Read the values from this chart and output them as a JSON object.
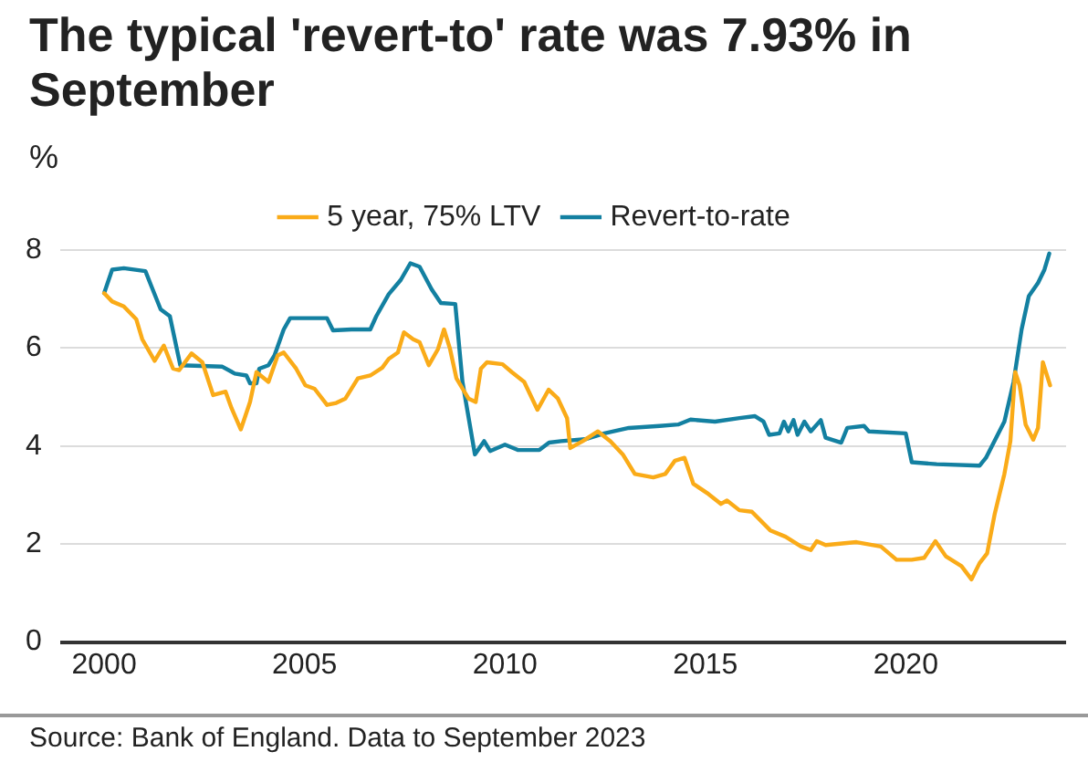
{
  "chart_data": {
    "type": "line",
    "title": "The typical 'revert-to' rate was 7.93% in September",
    "ylabel": "%",
    "annotations": [
      "Source: Bank of England. Data to September 2023"
    ],
    "xlim": [
      1998.9,
      2024
    ],
    "xticks": [
      2000,
      2005,
      2010,
      2015,
      2020
    ],
    "ylim": [
      0,
      8
    ],
    "yticks": [
      0,
      2,
      4,
      6,
      8
    ],
    "grid": "y",
    "legend": "top",
    "series": [
      {
        "name": "5 year, 75% LTV",
        "color": "#faab18",
        "x": [
          2000.0,
          2000.2,
          2000.49,
          2000.8,
          2000.95,
          2001.26,
          2001.49,
          2001.72,
          2001.87,
          2002.18,
          2002.45,
          2002.72,
          2003.03,
          2003.18,
          2003.41,
          2003.64,
          2003.8,
          2004.1,
          2004.33,
          2004.48,
          2004.79,
          2005.02,
          2005.25,
          2005.56,
          2005.79,
          2006.02,
          2006.33,
          2006.64,
          2006.94,
          2007.1,
          2007.33,
          2007.48,
          2007.71,
          2007.87,
          2008.1,
          2008.33,
          2008.48,
          2008.63,
          2008.79,
          2009.09,
          2009.27,
          2009.4,
          2009.55,
          2009.94,
          2010.17,
          2010.48,
          2010.81,
          2011.09,
          2011.32,
          2011.55,
          2011.63,
          2011.94,
          2012.32,
          2012.63,
          2012.94,
          2013.24,
          2013.7,
          2014.0,
          2014.24,
          2014.48,
          2014.7,
          2015.08,
          2015.39,
          2015.54,
          2015.85,
          2016.16,
          2016.62,
          2017.0,
          2017.39,
          2017.63,
          2017.78,
          2018.0,
          2018.77,
          2019.38,
          2019.77,
          2020.15,
          2020.46,
          2020.74,
          2021.0,
          2021.39,
          2021.64,
          2021.84,
          2022.03,
          2022.22,
          2022.46,
          2022.61,
          2022.73,
          2022.84,
          2022.99,
          2023.18,
          2023.3,
          2023.42,
          2023.6
        ],
        "values": [
          7.12,
          6.95,
          6.85,
          6.59,
          6.18,
          5.74,
          6.05,
          5.58,
          5.55,
          5.89,
          5.71,
          5.04,
          5.11,
          4.77,
          4.34,
          4.9,
          5.51,
          5.31,
          5.85,
          5.91,
          5.58,
          5.24,
          5.17,
          4.84,
          4.88,
          4.97,
          5.38,
          5.44,
          5.6,
          5.78,
          5.91,
          6.32,
          6.18,
          6.12,
          5.65,
          5.98,
          6.38,
          5.98,
          5.38,
          4.97,
          4.9,
          5.58,
          5.71,
          5.67,
          5.51,
          5.31,
          4.74,
          5.15,
          4.97,
          4.57,
          3.96,
          4.1,
          4.3,
          4.1,
          3.83,
          3.43,
          3.36,
          3.43,
          3.7,
          3.76,
          3.23,
          3.02,
          2.82,
          2.89,
          2.69,
          2.66,
          2.28,
          2.15,
          1.95,
          1.88,
          2.06,
          1.98,
          2.04,
          1.95,
          1.68,
          1.68,
          1.72,
          2.06,
          1.75,
          1.55,
          1.28,
          1.61,
          1.81,
          2.62,
          3.43,
          4.1,
          5.51,
          5.24,
          4.44,
          4.13,
          4.37,
          5.71,
          5.24
        ]
      },
      {
        "name": "Revert-to-rate",
        "color": "#1380a1",
        "x": [
          2000.0,
          2000.2,
          2000.49,
          2001.03,
          2001.18,
          2001.41,
          2001.64,
          2001.9,
          2002.95,
          2003.26,
          2003.55,
          2003.64,
          2003.8,
          2003.87,
          2004.1,
          2004.25,
          2004.48,
          2004.64,
          2005.56,
          2005.71,
          2006.17,
          2006.64,
          2006.79,
          2007.1,
          2007.4,
          2007.64,
          2007.87,
          2008.17,
          2008.4,
          2008.76,
          2008.94,
          2009.25,
          2009.48,
          2009.63,
          2010.0,
          2010.32,
          2010.86,
          2011.1,
          2011.4,
          2012.0,
          2012.48,
          2013.09,
          2013.86,
          2014.32,
          2014.63,
          2015.24,
          2015.85,
          2016.24,
          2016.45,
          2016.59,
          2016.85,
          2016.96,
          2017.07,
          2017.2,
          2017.3,
          2017.47,
          2017.63,
          2017.88,
          2018.0,
          2018.39,
          2018.54,
          2018.96,
          2019.08,
          2020.0,
          2020.15,
          2020.77,
          2021.84,
          2022.0,
          2022.46,
          2022.69,
          2022.89,
          2023.07,
          2023.3,
          2023.46,
          2023.58
        ],
        "values": [
          7.12,
          7.6,
          7.63,
          7.57,
          7.26,
          6.79,
          6.65,
          5.65,
          5.62,
          5.48,
          5.44,
          5.28,
          5.28,
          5.58,
          5.65,
          5.85,
          6.38,
          6.61,
          6.61,
          6.36,
          6.38,
          6.38,
          6.65,
          7.1,
          7.39,
          7.73,
          7.66,
          7.2,
          6.92,
          6.9,
          5.31,
          3.83,
          4.1,
          3.9,
          4.03,
          3.92,
          3.92,
          4.07,
          4.1,
          4.14,
          4.26,
          4.37,
          4.41,
          4.44,
          4.54,
          4.5,
          4.57,
          4.61,
          4.5,
          4.23,
          4.26,
          4.5,
          4.3,
          4.53,
          4.23,
          4.5,
          4.3,
          4.53,
          4.17,
          4.07,
          4.37,
          4.41,
          4.3,
          4.26,
          3.67,
          3.63,
          3.6,
          3.76,
          4.5,
          5.31,
          6.38,
          7.06,
          7.33,
          7.6,
          7.93
        ]
      }
    ]
  }
}
